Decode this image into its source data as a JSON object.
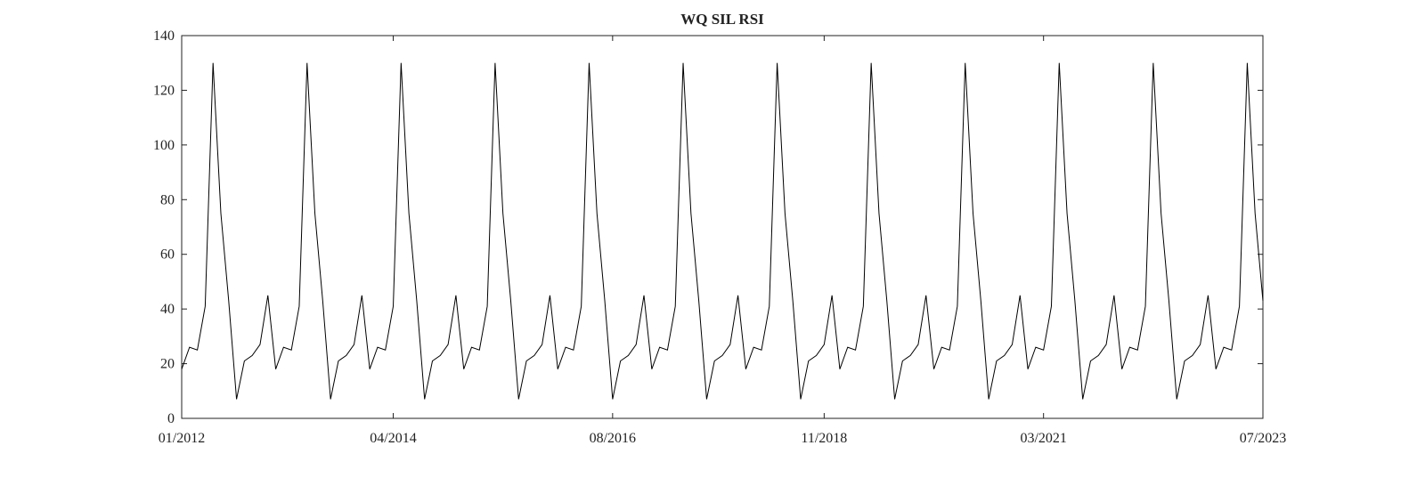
{
  "chart_data": {
    "type": "line",
    "title": "WQ SIL RSI",
    "x": [
      "01/2012",
      "02/2012",
      "03/2012",
      "04/2012",
      "05/2012",
      "06/2012",
      "07/2012",
      "08/2012",
      "09/2012",
      "10/2012",
      "11/2012",
      "12/2012",
      "01/2013",
      "02/2013",
      "03/2013",
      "04/2013",
      "05/2013",
      "06/2013",
      "07/2013",
      "08/2013",
      "09/2013",
      "10/2013",
      "11/2013",
      "12/2013",
      "01/2014",
      "02/2014",
      "03/2014",
      "04/2014",
      "05/2014",
      "06/2014",
      "07/2014",
      "08/2014",
      "09/2014",
      "10/2014",
      "11/2014",
      "12/2014",
      "01/2015",
      "02/2015",
      "03/2015",
      "04/2015",
      "05/2015",
      "06/2015",
      "07/2015",
      "08/2015",
      "09/2015",
      "10/2015",
      "11/2015",
      "12/2015",
      "01/2016",
      "02/2016",
      "03/2016",
      "04/2016",
      "05/2016",
      "06/2016",
      "07/2016",
      "08/2016",
      "09/2016",
      "10/2016",
      "11/2016",
      "12/2016",
      "01/2017",
      "02/2017",
      "03/2017",
      "04/2017",
      "05/2017",
      "06/2017",
      "07/2017",
      "08/2017",
      "09/2017",
      "10/2017",
      "11/2017",
      "12/2017",
      "01/2018",
      "02/2018",
      "03/2018",
      "04/2018",
      "05/2018",
      "06/2018",
      "07/2018",
      "08/2018",
      "09/2018",
      "10/2018",
      "11/2018",
      "12/2018",
      "01/2019",
      "02/2019",
      "03/2019",
      "04/2019",
      "05/2019",
      "06/2019",
      "07/2019",
      "08/2019",
      "09/2019",
      "10/2019",
      "11/2019",
      "12/2019",
      "01/2020",
      "02/2020",
      "03/2020",
      "04/2020",
      "05/2020",
      "06/2020",
      "07/2020",
      "08/2020",
      "09/2020",
      "10/2020",
      "11/2020",
      "12/2020",
      "01/2021",
      "02/2021",
      "03/2021",
      "04/2021",
      "05/2021",
      "06/2021",
      "07/2021",
      "08/2021",
      "09/2021",
      "10/2021",
      "11/2021",
      "12/2021",
      "01/2022",
      "02/2022",
      "03/2022",
      "04/2022",
      "05/2022",
      "06/2022",
      "07/2022",
      "08/2022",
      "09/2022",
      "10/2022",
      "11/2022",
      "12/2022",
      "01/2023",
      "02/2023",
      "03/2023",
      "04/2023",
      "05/2023",
      "06/2023",
      "07/2023"
    ],
    "series": [
      {
        "color": "#000000",
        "values": [
          18,
          26,
          25,
          41,
          130,
          75,
          43,
          7,
          21,
          23,
          27,
          45,
          18,
          26,
          25,
          41,
          130,
          75,
          43,
          7,
          21,
          23,
          27,
          45,
          18,
          26,
          25,
          41,
          130,
          75,
          43,
          7,
          21,
          23,
          27,
          45,
          18,
          26,
          25,
          41,
          130,
          75,
          43,
          7,
          21,
          23,
          27,
          45,
          18,
          26,
          25,
          41,
          130,
          75,
          43,
          7,
          21,
          23,
          27,
          45,
          18,
          26,
          25,
          41,
          130,
          75,
          43,
          7,
          21,
          23,
          27,
          45,
          18,
          26,
          25,
          41,
          130,
          75,
          43,
          7,
          21,
          23,
          27,
          45,
          18,
          26,
          25,
          41,
          130,
          75,
          43,
          7,
          21,
          23,
          27,
          45,
          18,
          26,
          25,
          41,
          130,
          75,
          43,
          7,
          21,
          23,
          27,
          45,
          18,
          26,
          25,
          41,
          130,
          75,
          43,
          7,
          21,
          23,
          27,
          45,
          18,
          26,
          25,
          41,
          130,
          75,
          43,
          7,
          21,
          23,
          27,
          45,
          18,
          26,
          25,
          41,
          130,
          75,
          43
        ]
      }
    ],
    "xticks": [
      "01/2012",
      "04/2014",
      "08/2016",
      "11/2018",
      "03/2021",
      "07/2023"
    ],
    "ylim": [
      0,
      140
    ],
    "yticks": [
      0,
      20,
      40,
      60,
      80,
      100,
      120,
      140
    ]
  }
}
